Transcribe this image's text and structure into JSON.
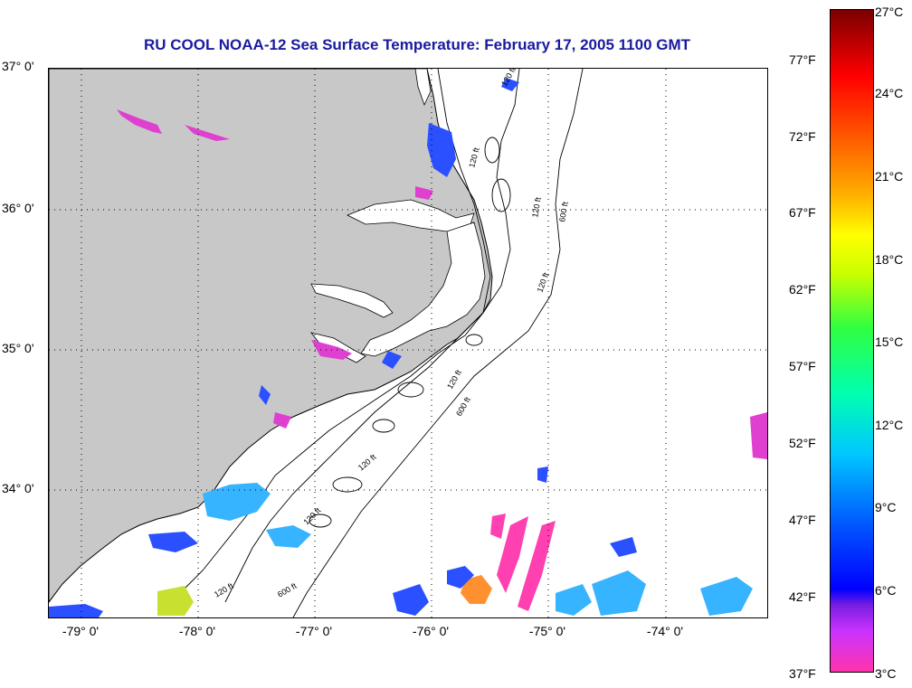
{
  "title": "RU COOL  NOAA-12  Sea Surface Temperature:  February 17, 2005 1100 GMT",
  "map": {
    "latitude_labels": [
      "37° 0'",
      "36° 0'",
      "35° 0'",
      "34° 0'"
    ],
    "longitude_labels": [
      "-79° 0'",
      "-78° 0'",
      "-77° 0'",
      "-76° 0'",
      "-75° 0'",
      "-74° 0'"
    ],
    "depth_contour_labels": [
      "120 ft",
      "120 ft",
      "120 ft",
      "600 ft",
      "120 ft",
      "120 ft",
      "600 ft",
      "120 ft",
      "120 ft",
      "120 ft",
      "600 ft"
    ],
    "colors": {
      "land": "#c8c8c8",
      "ocean": "#ffffff",
      "grid": "#000000",
      "title": "#1a1aa0"
    }
  },
  "colorbar": {
    "fahrenheit_labels": [
      "77°F",
      "72°F",
      "67°F",
      "62°F",
      "57°F",
      "52°F",
      "47°F",
      "42°F",
      "37°F"
    ],
    "celsius_labels": [
      "27°C",
      "24°C",
      "21°C",
      "18°C",
      "15°C",
      "12°C",
      "9°C",
      "6°C",
      "3°C"
    ]
  }
}
